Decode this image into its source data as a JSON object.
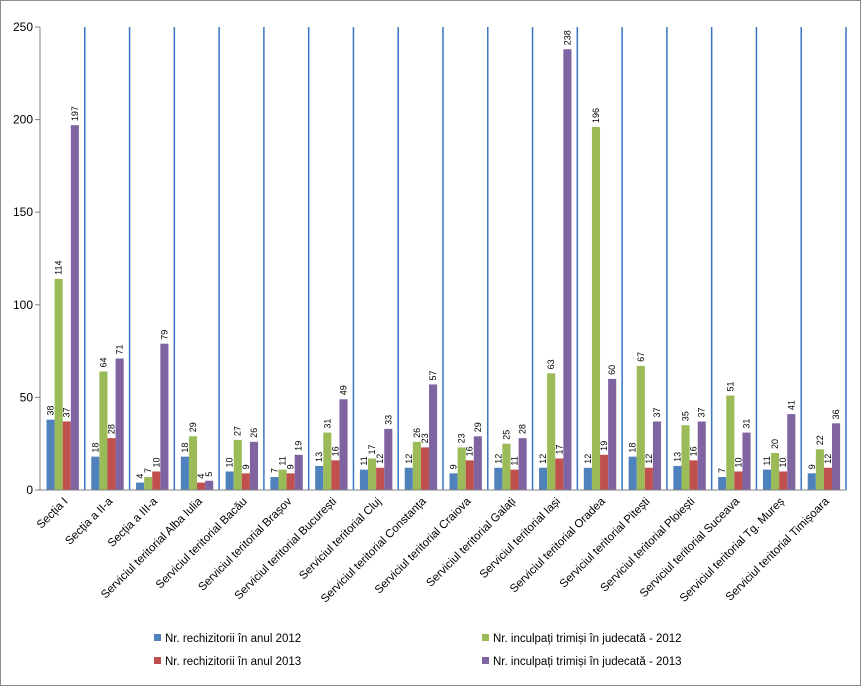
{
  "chart_data": {
    "type": "bar",
    "title": "",
    "xlabel": "",
    "ylabel": "",
    "ylim": [
      0,
      250
    ],
    "yticks": [
      0,
      50,
      100,
      150,
      200,
      250
    ],
    "grid": "vertical separators between categories",
    "legend_position": "bottom",
    "categories": [
      "Secția I",
      "Secția a II-a",
      "Secția a III-a",
      "Serviciul teritorial Alba Iulia",
      "Serviciul teritorial Bacău",
      "Serviciul teritorial Brașov",
      "Serviciul teritorial București",
      "Serviciul teritorial Cluj",
      "Serviciul teritorial Constanța",
      "Serviciul teritorial Craiova",
      "Serviciul teritorial Galați",
      "Serviciul teritorial Iași",
      "Serviciul teritorial Oradea",
      "Serviciul teritorial Pitești",
      "Serviciul teritorial Ploiești",
      "Serviciul teritorial Suceava",
      "Serviciul teritorial Tg. Mureș",
      "Serviciul teritorial Timișoara"
    ],
    "series": [
      {
        "name": "Nr. rechizitorii în anul 2012",
        "color": "#4f81bd",
        "values": [
          38,
          18,
          4,
          18,
          10,
          7,
          13,
          11,
          12,
          9,
          12,
          12,
          12,
          18,
          13,
          7,
          11,
          9
        ]
      },
      {
        "name": "Nr. inculpați trimiși în judecată - 2012",
        "color": "#9bbb59",
        "values": [
          114,
          64,
          7,
          29,
          27,
          11,
          31,
          17,
          26,
          23,
          25,
          63,
          196,
          67,
          35,
          51,
          20,
          22
        ]
      },
      {
        "name": "Nr. rechizitorii în anul 2013",
        "color": "#c0504d",
        "values": [
          37,
          28,
          10,
          4,
          9,
          9,
          16,
          12,
          23,
          16,
          11,
          17,
          19,
          12,
          16,
          10,
          10,
          12
        ]
      },
      {
        "name": "Nr. inculpați trimiși în judecată - 2013",
        "color": "#8064a2",
        "values": [
          197,
          71,
          79,
          5,
          26,
          19,
          49,
          33,
          57,
          29,
          28,
          238,
          60,
          37,
          37,
          31,
          41,
          36
        ]
      }
    ]
  }
}
